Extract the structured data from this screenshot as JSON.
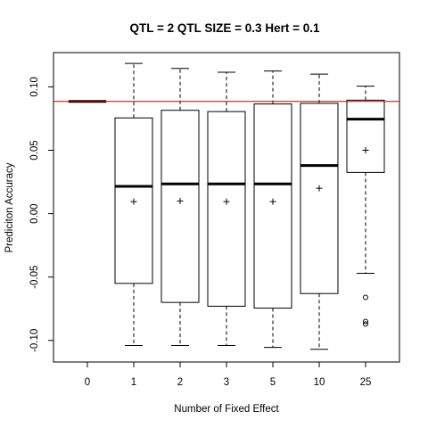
{
  "chart_data": {
    "type": "boxplot",
    "title": "QTL = 2 QTL SIZE = 0.3 Hert = 0.1",
    "xlabel": "Number of Fixed Effect",
    "ylabel": "Prediciton Accuracy",
    "ylim": [
      -0.117,
      0.127
    ],
    "y_ticks": [
      -0.1,
      -0.05,
      0.0,
      0.05,
      0.1
    ],
    "y_tick_labels": [
      "-0.10",
      "-0.05",
      "0.00",
      "0.05",
      "0.10"
    ],
    "reference_line": {
      "value": 0.0885,
      "color": "#cc0000"
    },
    "categories": [
      "0",
      "1",
      "2",
      "3",
      "5",
      "10",
      "25"
    ],
    "boxes": [
      {
        "label": "0",
        "lower_whisker": 0.0885,
        "q1": 0.0885,
        "median": 0.0885,
        "q3": 0.0885,
        "upper_whisker": 0.0885,
        "mean": 0.0885,
        "outliers": []
      },
      {
        "label": "1",
        "lower_whisker": -0.104,
        "q1": -0.055,
        "median": 0.0215,
        "q3": 0.0755,
        "upper_whisker": 0.1185,
        "mean": 0.0095,
        "outliers": []
      },
      {
        "label": "2",
        "lower_whisker": -0.104,
        "q1": -0.07,
        "median": 0.0235,
        "q3": 0.0815,
        "upper_whisker": 0.1145,
        "mean": 0.01,
        "outliers": []
      },
      {
        "label": "3",
        "lower_whisker": -0.104,
        "q1": -0.073,
        "median": 0.0235,
        "q3": 0.0805,
        "upper_whisker": 0.1115,
        "mean": 0.0095,
        "outliers": []
      },
      {
        "label": "5",
        "lower_whisker": -0.1055,
        "q1": -0.0745,
        "median": 0.0235,
        "q3": 0.0865,
        "upper_whisker": 0.1125,
        "mean": 0.0095,
        "outliers": []
      },
      {
        "label": "10",
        "lower_whisker": -0.107,
        "q1": -0.063,
        "median": 0.038,
        "q3": 0.087,
        "upper_whisker": 0.11,
        "mean": 0.02,
        "outliers": []
      },
      {
        "label": "25",
        "lower_whisker": -0.047,
        "q1": 0.0325,
        "median": 0.0745,
        "q3": 0.0895,
        "upper_whisker": 0.1005,
        "mean": 0.05,
        "outliers": [
          -0.066,
          -0.085,
          -0.087
        ]
      }
    ],
    "colors": {
      "box": "#000000",
      "reference_line": "#cc0000",
      "background": "#ffffff"
    }
  }
}
